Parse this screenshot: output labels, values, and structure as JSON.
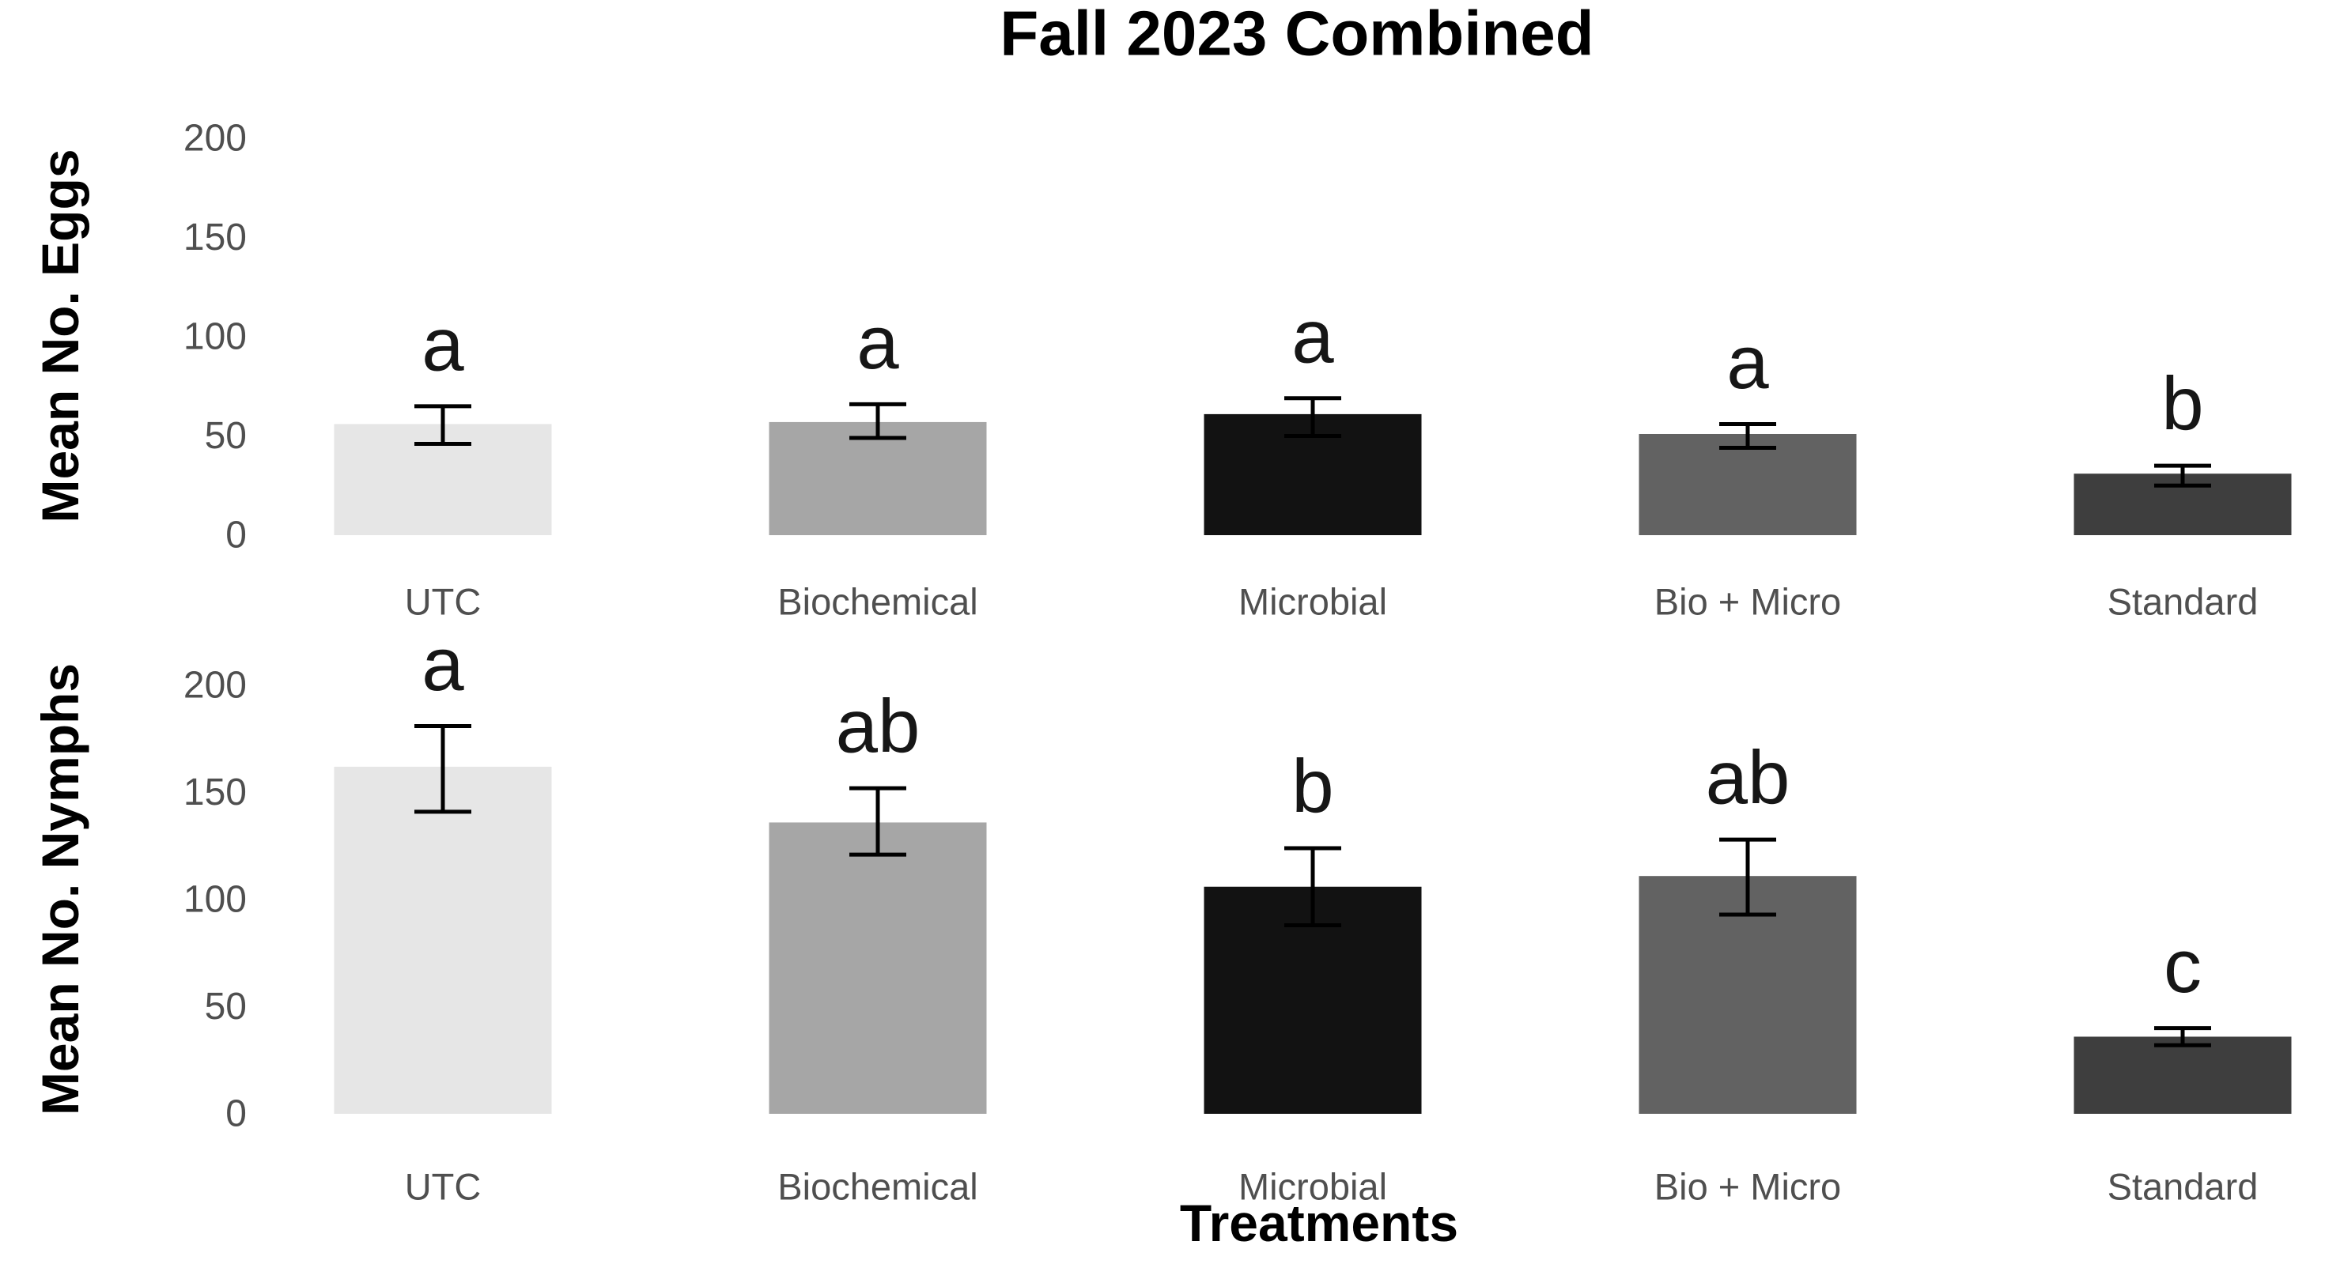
{
  "title": "Fall 2023 Combined",
  "colors": {
    "background": "#ffffff",
    "title_text": "#000000",
    "axis_title_text": "#000000",
    "tick_label": "#4f4f4f",
    "error_bar": "#000000",
    "sig_letter": "#161616"
  },
  "chart_data": [
    {
      "type": "bar",
      "panel": "eggs",
      "ylabel": "Mean No. Eggs",
      "categories": [
        "UTC",
        "Biochemical",
        "Microbial",
        "Bio + Micro",
        "Standard"
      ],
      "values": [
        56,
        57,
        61,
        51,
        31
      ],
      "error_low": [
        46,
        49,
        50,
        44,
        25
      ],
      "error_high": [
        65,
        66,
        69,
        56,
        35
      ],
      "sig_letters": [
        "a",
        "a",
        "a",
        "a",
        "b"
      ],
      "bar_colors": [
        "#e6e6e6",
        "#a6a6a6",
        "#121212",
        "#626262",
        "#3e3e3e"
      ],
      "yticks": [
        0,
        50,
        100,
        150,
        200
      ],
      "ylim": [
        0,
        210
      ],
      "grid": false,
      "legend": "none"
    },
    {
      "type": "bar",
      "panel": "nymphs",
      "ylabel": "Mean No. Nymphs",
      "xlabel": "Treatments",
      "categories": [
        "UTC",
        "Biochemical",
        "Microbial",
        "Bio + Micro",
        "Standard"
      ],
      "values": [
        162,
        136,
        106,
        111,
        36
      ],
      "error_low": [
        141,
        121,
        88,
        93,
        32
      ],
      "error_high": [
        181,
        152,
        124,
        128,
        40
      ],
      "sig_letters": [
        "a",
        "ab",
        "b",
        "ab",
        "c"
      ],
      "bar_colors": [
        "#e6e6e6",
        "#a6a6a6",
        "#121212",
        "#626262",
        "#3e3e3e"
      ],
      "yticks": [
        0,
        50,
        100,
        150,
        200
      ],
      "ylim": [
        0,
        210
      ],
      "grid": false,
      "legend": "none"
    }
  ]
}
